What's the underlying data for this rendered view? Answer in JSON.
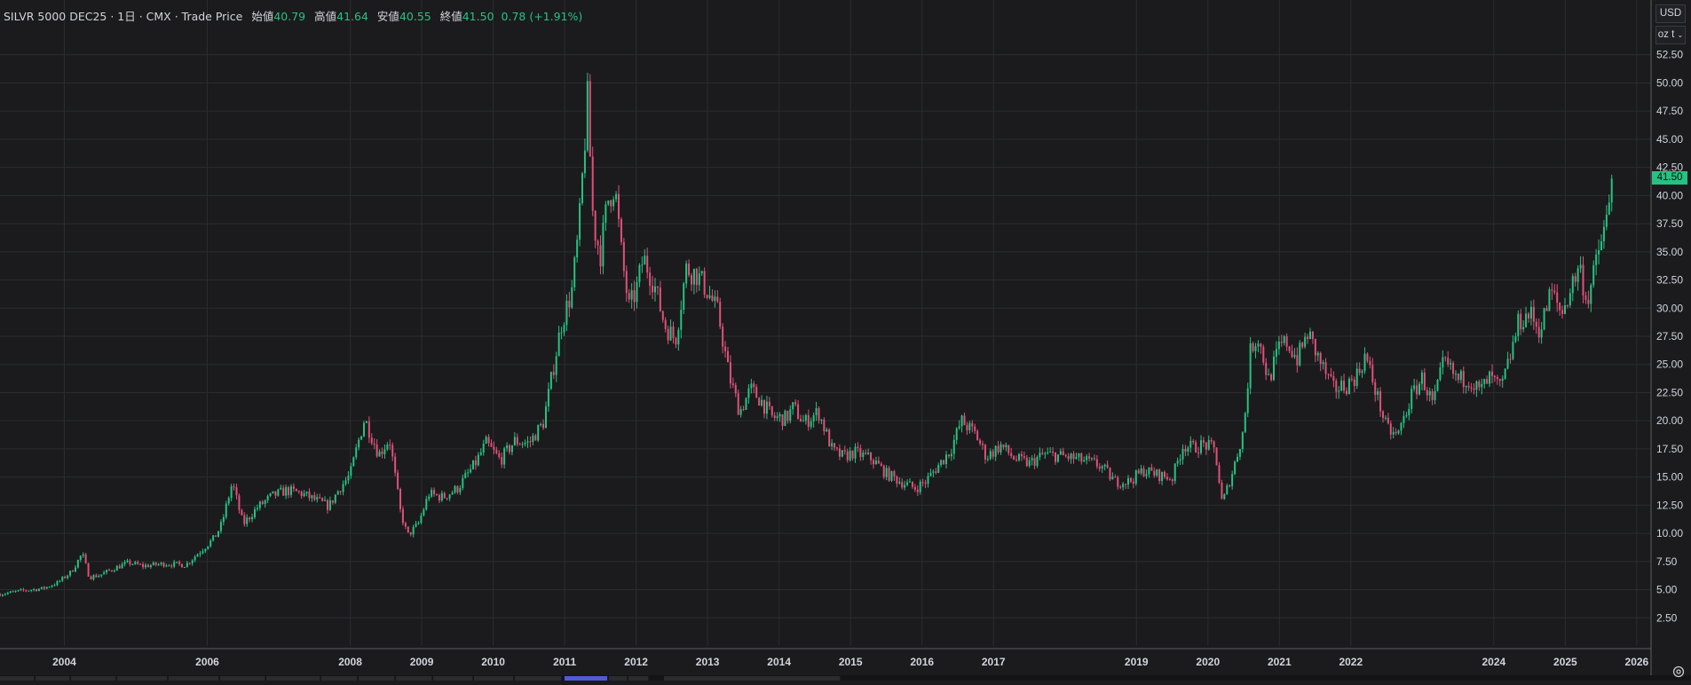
{
  "header": {
    "symbol": "SILVR 5000 DEC25 · 1日 · CMX · Trade Price",
    "open_label": "始値",
    "open_value": "40.79",
    "high_label": "高値",
    "high_value": "41.64",
    "low_label": "安値",
    "low_value": "40.55",
    "close_label": "終値",
    "close_value": "41.50",
    "change": "0.78 (+1.91%)"
  },
  "currency_label": "USD",
  "unit_label": "oz t",
  "last_price_label": "41.50",
  "colors": {
    "up": "#26c281",
    "down": "#e0507a",
    "bg": "#1b1b1d",
    "grid": "#2b2c30",
    "last_price": "#26c281"
  },
  "icons": {
    "unit_dropdown": "chevron-down-icon",
    "settings": "gear-icon"
  },
  "chart_data": {
    "type": "candlestick",
    "title": "",
    "x_tick_labels": [
      "2004",
      "2006",
      "2008",
      "2009",
      "2010",
      "2011",
      "2012",
      "2013",
      "2014",
      "2015",
      "2016",
      "2017",
      "2019",
      "2020",
      "2021",
      "2022",
      "2024",
      "2025",
      "2026"
    ],
    "y_tick_labels": [
      "2.50",
      "5.00",
      "7.50",
      "10.00",
      "12.50",
      "15.00",
      "17.50",
      "20.00",
      "22.50",
      "25.00",
      "27.50",
      "30.00",
      "32.50",
      "35.00",
      "37.50",
      "40.00",
      "42.50",
      "45.00",
      "47.50",
      "50.00",
      "52.50"
    ],
    "ylim": [
      0,
      55
    ],
    "xlim": [
      2003.1,
      2026.2
    ],
    "grid": true,
    "series": [
      {
        "values": [
          [
            2003.1,
            4.6
          ],
          [
            2003.4,
            4.9
          ],
          [
            2003.7,
            5.1
          ],
          [
            2003.9,
            5.6
          ],
          [
            2004.1,
            6.6
          ],
          [
            2004.25,
            8.2
          ],
          [
            2004.35,
            6.1
          ],
          [
            2004.5,
            6.3
          ],
          [
            2004.7,
            6.9
          ],
          [
            2004.9,
            7.4
          ],
          [
            2005.1,
            7.1
          ],
          [
            2005.4,
            7.3
          ],
          [
            2005.7,
            7.2
          ],
          [
            2005.9,
            8.4
          ],
          [
            2006.1,
            9.6
          ],
          [
            2006.2,
            10.8
          ],
          [
            2006.35,
            14.5
          ],
          [
            2006.5,
            10.8
          ],
          [
            2006.7,
            12.3
          ],
          [
            2006.9,
            13.3
          ],
          [
            2007.1,
            13.8
          ],
          [
            2007.3,
            13.6
          ],
          [
            2007.5,
            13.0
          ],
          [
            2007.7,
            12.4
          ],
          [
            2007.85,
            14.0
          ],
          [
            2008.0,
            15.2
          ],
          [
            2008.1,
            17.8
          ],
          [
            2008.2,
            20.2
          ],
          [
            2008.4,
            17.0
          ],
          [
            2008.55,
            18.4
          ],
          [
            2008.7,
            12.0
          ],
          [
            2008.8,
            9.8
          ],
          [
            2008.95,
            10.8
          ],
          [
            2009.1,
            13.5
          ],
          [
            2009.3,
            13.2
          ],
          [
            2009.5,
            14.0
          ],
          [
            2009.75,
            16.2
          ],
          [
            2009.9,
            18.0
          ],
          [
            2010.1,
            16.5
          ],
          [
            2010.3,
            18.2
          ],
          [
            2010.5,
            18.0
          ],
          [
            2010.7,
            19.8
          ],
          [
            2010.8,
            23.2
          ],
          [
            2010.95,
            28.5
          ],
          [
            2011.1,
            31.5
          ],
          [
            2011.2,
            37.0
          ],
          [
            2011.32,
            48.5
          ],
          [
            2011.4,
            37.5
          ],
          [
            2011.5,
            34.8
          ],
          [
            2011.6,
            39.5
          ],
          [
            2011.7,
            41.0
          ],
          [
            2011.8,
            34.5
          ],
          [
            2011.9,
            30.0
          ],
          [
            2012.0,
            31.5
          ],
          [
            2012.1,
            34.5
          ],
          [
            2012.25,
            32.2
          ],
          [
            2012.4,
            28.5
          ],
          [
            2012.55,
            27.2
          ],
          [
            2012.7,
            33.5
          ],
          [
            2012.85,
            33.0
          ],
          [
            2013.0,
            31.5
          ],
          [
            2013.15,
            29.5
          ],
          [
            2013.3,
            24.0
          ],
          [
            2013.45,
            20.8
          ],
          [
            2013.6,
            22.8
          ],
          [
            2013.75,
            21.8
          ],
          [
            2013.9,
            20.3
          ],
          [
            2014.1,
            20.2
          ],
          [
            2014.2,
            21.2
          ],
          [
            2014.35,
            19.8
          ],
          [
            2014.55,
            20.8
          ],
          [
            2014.75,
            17.3
          ],
          [
            2014.9,
            16.8
          ],
          [
            2015.05,
            17.2
          ],
          [
            2015.3,
            16.6
          ],
          [
            2015.5,
            15.3
          ],
          [
            2015.7,
            14.6
          ],
          [
            2015.9,
            14.0
          ],
          [
            2016.05,
            14.6
          ],
          [
            2016.2,
            15.8
          ],
          [
            2016.4,
            17.4
          ],
          [
            2016.55,
            20.0
          ],
          [
            2016.75,
            18.8
          ],
          [
            2016.9,
            16.8
          ],
          [
            2017.1,
            17.8
          ],
          [
            2017.3,
            16.6
          ],
          [
            2017.5,
            16.2
          ],
          [
            2017.7,
            17.0
          ],
          [
            2017.9,
            16.9
          ],
          [
            2018.1,
            16.7
          ],
          [
            2018.3,
            16.4
          ],
          [
            2018.5,
            16.0
          ],
          [
            2018.7,
            14.6
          ],
          [
            2018.9,
            14.6
          ],
          [
            2019.1,
            15.6
          ],
          [
            2019.3,
            15.2
          ],
          [
            2019.5,
            14.9
          ],
          [
            2019.65,
            17.8
          ],
          [
            2019.8,
            17.6
          ],
          [
            2019.95,
            17.9
          ],
          [
            2020.1,
            17.4
          ],
          [
            2020.2,
            12.6
          ],
          [
            2020.35,
            15.6
          ],
          [
            2020.5,
            19.2
          ],
          [
            2020.6,
            26.5
          ],
          [
            2020.7,
            27.5
          ],
          [
            2020.85,
            23.6
          ],
          [
            2021.0,
            26.5
          ],
          [
            2021.1,
            27.0
          ],
          [
            2021.25,
            25.5
          ],
          [
            2021.4,
            27.8
          ],
          [
            2021.55,
            25.5
          ],
          [
            2021.75,
            22.8
          ],
          [
            2021.95,
            23.2
          ],
          [
            2022.1,
            24.2
          ],
          [
            2022.2,
            25.8
          ],
          [
            2022.35,
            22.6
          ],
          [
            2022.5,
            19.3
          ],
          [
            2022.65,
            18.6
          ],
          [
            2022.85,
            22.2
          ],
          [
            2023.0,
            23.8
          ],
          [
            2023.15,
            21.4
          ],
          [
            2023.3,
            25.2
          ],
          [
            2023.5,
            23.6
          ],
          [
            2023.65,
            23.8
          ],
          [
            2023.8,
            22.6
          ],
          [
            2023.95,
            23.8
          ],
          [
            2024.1,
            22.8
          ],
          [
            2024.2,
            25.0
          ],
          [
            2024.35,
            28.8
          ],
          [
            2024.5,
            29.5
          ],
          [
            2024.65,
            28.0
          ],
          [
            2024.8,
            31.5
          ],
          [
            2024.95,
            29.5
          ],
          [
            2025.1,
            32.2
          ],
          [
            2025.2,
            33.8
          ],
          [
            2025.3,
            30.5
          ],
          [
            2025.4,
            33.0
          ],
          [
            2025.5,
            36.0
          ],
          [
            2025.6,
            38.2
          ],
          [
            2025.65,
            41.5
          ]
        ]
      }
    ]
  }
}
